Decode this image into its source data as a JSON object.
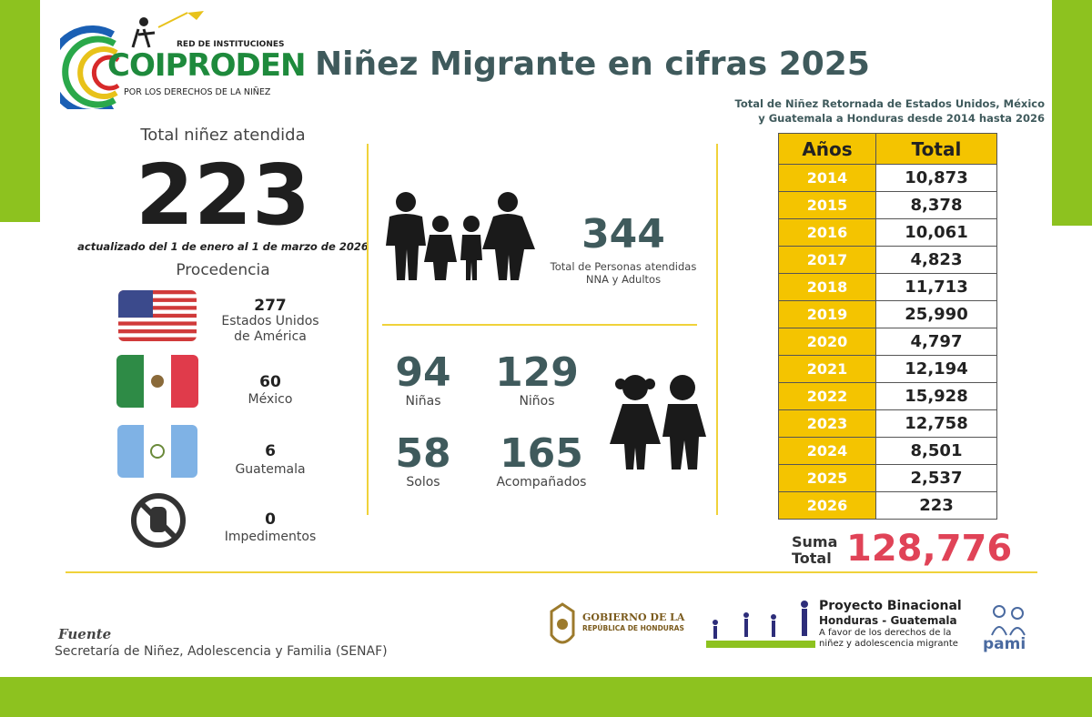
{
  "header": {
    "title": "Niñez Migrante en cifras 2025",
    "subtitle_line1": "Total de Niñez Retornada de Estados Unidos, México",
    "subtitle_line2": "y Guatemala a Honduras desde 2014 hasta 2026"
  },
  "logo": {
    "red": "RED DE INSTITUCIONES",
    "name": "COIPRODEN",
    "tagline": "POR LOS DERECHOS DE LA NIÑEZ"
  },
  "summary": {
    "label": "Total niñez atendida",
    "value": "223",
    "updated": "actualizado del 1 de enero al 1 de marzo de 2026",
    "procedencia_label": "Procedencia"
  },
  "origins": [
    {
      "count": "277",
      "name_line1": "Estados Unidos",
      "name_line2": "de América",
      "icon": "usa-flag-icon"
    },
    {
      "count": "60",
      "name_line1": "México",
      "name_line2": "",
      "icon": "mexico-flag-icon"
    },
    {
      "count": "6",
      "name_line1": "Guatemala",
      "name_line2": "",
      "icon": "guatemala-flag-icon"
    },
    {
      "count": "0",
      "name_line1": "Impedimentos",
      "name_line2": "",
      "icon": "stop-hand-icon"
    }
  ],
  "persons": {
    "value": "344",
    "label_line1": "Total de Personas atendidas",
    "label_line2": "NNA y Adultos"
  },
  "breakdown": {
    "ninas": {
      "value": "94",
      "label": "Niñas"
    },
    "ninos": {
      "value": "129",
      "label": "Niños"
    },
    "solos": {
      "value": "58",
      "label": "Solos"
    },
    "acompanados": {
      "value": "165",
      "label": "Acompañados"
    }
  },
  "years_table": {
    "header_year": "Años",
    "header_total": "Total",
    "rows": [
      {
        "year": "2014",
        "total": "10,873"
      },
      {
        "year": "2015",
        "total": "8,378"
      },
      {
        "year": "2016",
        "total": "10,061"
      },
      {
        "year": "2017",
        "total": "4,823"
      },
      {
        "year": "2018",
        "total": "11,713"
      },
      {
        "year": "2019",
        "total": "25,990"
      },
      {
        "year": "2020",
        "total": "4,797"
      },
      {
        "year": "2021",
        "total": "12,194"
      },
      {
        "year": "2022",
        "total": "15,928"
      },
      {
        "year": "2023",
        "total": "12,758"
      },
      {
        "year": "2024",
        "total": "8,501"
      },
      {
        "year": "2025",
        "total": "2,537"
      },
      {
        "year": "2026",
        "total": "223"
      }
    ]
  },
  "suma": {
    "label_line1": "Suma",
    "label_line2": "Total",
    "value": "128,776"
  },
  "footer": {
    "fuente_label": "Fuente",
    "fuente_text": "Secretaría de Niñez, Adolescencia y Familia (SENAF)",
    "gobierno_line1": "GOBIERNO DE LA",
    "gobierno_line2": "REPÚBLICA DE HONDURAS",
    "proyecto_title": "Proyecto Binacional",
    "proyecto_sub": "Honduras - Guatemala",
    "proyecto_line1": "A favor de los derechos de la",
    "proyecto_line2": "niñez y adolescencia migrante",
    "pami": "pami"
  },
  "colors": {
    "green": "#8dc21f",
    "teal": "#3f5a5c",
    "yellow": "#f4c400",
    "red": "#e04357"
  }
}
